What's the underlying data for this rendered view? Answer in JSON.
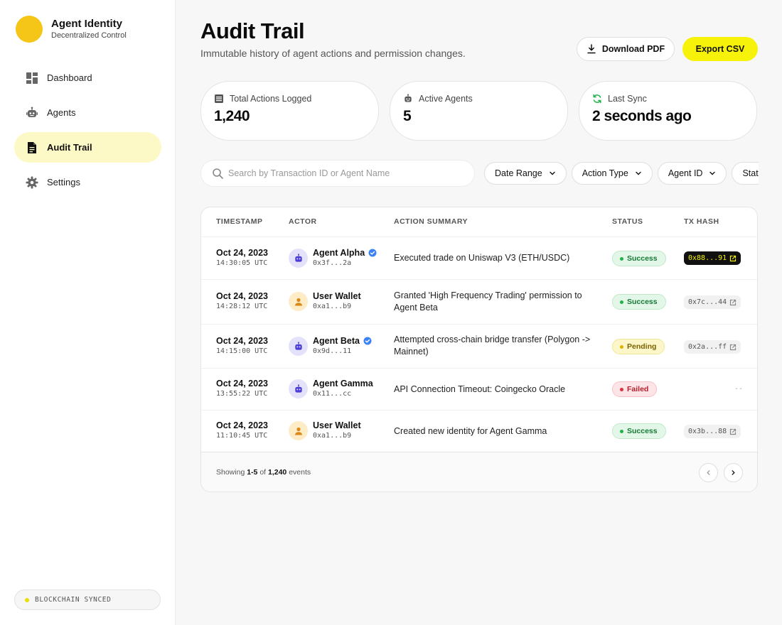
{
  "brand": {
    "title": "Agent Identity",
    "subtitle": "Decentralized Control"
  },
  "sidebar": {
    "items": [
      {
        "label": "Dashboard",
        "icon": "dashboard-icon"
      },
      {
        "label": "Agents",
        "icon": "robot-icon"
      },
      {
        "label": "Audit Trail",
        "icon": "document-icon",
        "active": true
      },
      {
        "label": "Settings",
        "icon": "gear-icon"
      }
    ],
    "status": "BLOCKCHAIN SYNCED"
  },
  "header": {
    "title": "Audit Trail",
    "subtitle": "Immutable history of agent actions and permission changes.",
    "download_pdf": "Download PDF",
    "export_csv": "Export CSV"
  },
  "stats": [
    {
      "label": "Total Actions Logged",
      "value": "1,240",
      "icon": "table-icon"
    },
    {
      "label": "Active Agents",
      "value": "5",
      "icon": "robot-icon"
    },
    {
      "label": "Last Sync",
      "value": "2 seconds ago",
      "icon": "sync-icon"
    }
  ],
  "search": {
    "placeholder": "Search by Transaction ID or Agent Name",
    "value": ""
  },
  "filters": [
    "Date Range",
    "Action Type",
    "Agent ID",
    "Stat"
  ],
  "table": {
    "headers": [
      "TIMESTAMP",
      "ACTOR",
      "ACTION SUMMARY",
      "STATUS",
      "TX HASH"
    ],
    "rows": [
      {
        "date": "Oct 24, 2023",
        "time": "14:30:05 UTC",
        "actor": "Agent Alpha",
        "type": "agent",
        "verified": true,
        "addr": "0x3f...2a",
        "summary": "Executed trade on Uniswap V3 (ETH/USDC)",
        "status": "Success",
        "status_kind": "success",
        "hash": "0x88...91",
        "hash_style": "dark"
      },
      {
        "date": "Oct 24, 2023",
        "time": "14:28:12 UTC",
        "actor": "User Wallet",
        "type": "user",
        "verified": false,
        "addr": "0xa1...b9",
        "summary": "Granted 'High Frequency Trading' permission to Agent Beta",
        "status": "Success",
        "status_kind": "success",
        "hash": "0x7c...44",
        "hash_style": "light"
      },
      {
        "date": "Oct 24, 2023",
        "time": "14:15:00 UTC",
        "actor": "Agent Beta",
        "type": "agent",
        "verified": true,
        "addr": "0x9d...11",
        "summary": "Attempted cross-chain bridge transfer (Polygon -> Mainnet)",
        "status": "Pending",
        "status_kind": "pending",
        "hash": "0x2a...ff",
        "hash_style": "light"
      },
      {
        "date": "Oct 24, 2023",
        "time": "13:55:22 UTC",
        "actor": "Agent Gamma",
        "type": "agent",
        "verified": false,
        "addr": "0x11...cc",
        "summary": "API Connection Timeout: Coingecko Oracle",
        "status": "Failed",
        "status_kind": "failed",
        "hash": "--",
        "hash_style": "none"
      },
      {
        "date": "Oct 24, 2023",
        "time": "11:10:45 UTC",
        "actor": "User Wallet",
        "type": "user",
        "verified": false,
        "addr": "0xa1...b9",
        "summary": "Created new identity for Agent Gamma",
        "status": "Success",
        "status_kind": "success",
        "hash": "0x3b...88",
        "hash_style": "light"
      }
    ]
  },
  "footer": {
    "prefix": "Showing",
    "range": "1-5",
    "of": "of",
    "total": "1,240",
    "suffix": "events"
  },
  "colors": {
    "accent": "#f6f20a",
    "brand": "#f5c518",
    "active_nav": "#fdf9c7"
  }
}
